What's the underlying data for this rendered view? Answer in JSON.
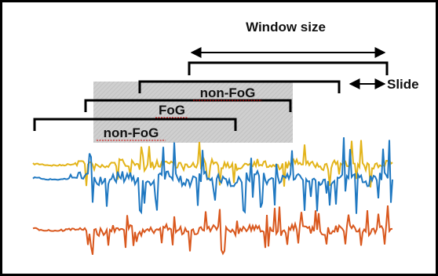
{
  "labels": {
    "window_size": "Window size",
    "slide": "Slide",
    "windows": [
      "non-FoG",
      "FoG",
      "non-FoG"
    ]
  },
  "colors": {
    "frame": "#000000",
    "shade": "#c8c8c8",
    "signal_yellow": "#e3b41a",
    "signal_blue": "#1f78c1",
    "signal_orange": "#d9581e",
    "spellcheck_underline": "#d00000"
  }
}
